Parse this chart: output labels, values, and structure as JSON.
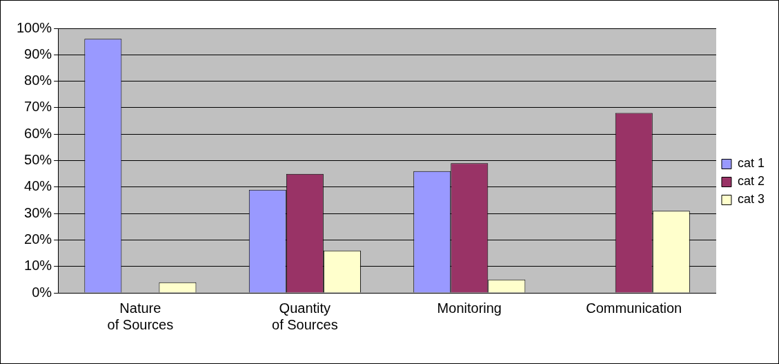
{
  "chart_data": {
    "type": "bar",
    "categories": [
      "Nature of Sources",
      "Quantity of Sources",
      "Monitoring",
      "Communication"
    ],
    "series": [
      {
        "name": "cat 1",
        "color": "#9999ff",
        "values": [
          96,
          39,
          46,
          0
        ]
      },
      {
        "name": "cat 2",
        "color": "#993366",
        "values": [
          0,
          45,
          49,
          68
        ]
      },
      {
        "name": "cat 3",
        "color": "#ffffcc",
        "values": [
          4,
          16,
          5,
          31
        ]
      }
    ],
    "ylim": [
      0,
      100
    ],
    "yticks": [
      {
        "value": 0,
        "label": "0%"
      },
      {
        "value": 10,
        "label": "10%"
      },
      {
        "value": 20,
        "label": "20%"
      },
      {
        "value": 30,
        "label": "30%"
      },
      {
        "value": 40,
        "label": "40%"
      },
      {
        "value": 50,
        "label": "50%"
      },
      {
        "value": 60,
        "label": "60%"
      },
      {
        "value": 70,
        "label": "70%"
      },
      {
        "value": 80,
        "label": "80%"
      },
      {
        "value": 90,
        "label": "90%"
      },
      {
        "value": 100,
        "label": "100%"
      }
    ],
    "grid": "y",
    "legend": "right"
  }
}
